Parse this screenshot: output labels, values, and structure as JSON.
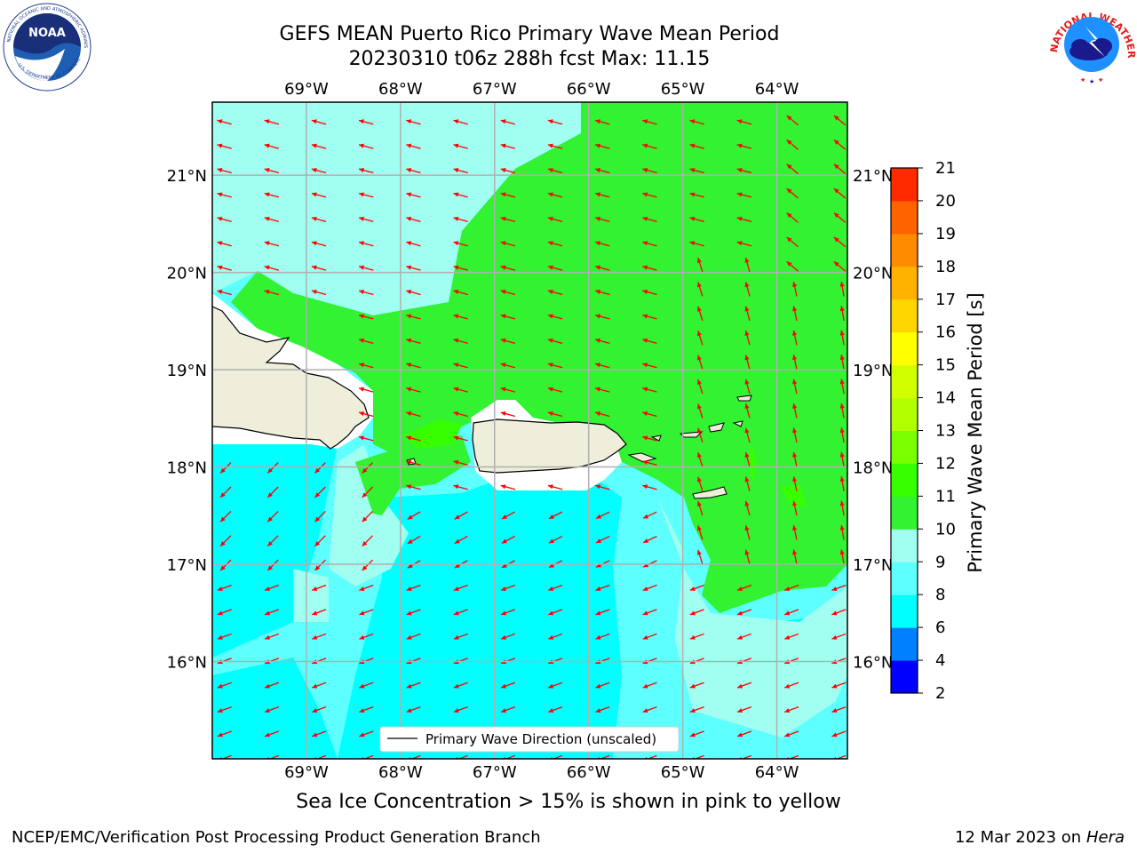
{
  "title": {
    "line1": "GEFS MEAN Puerto Rico Primary Wave Mean Period",
    "line2": "20230310 t06z 288h fcst   Max: 11.15"
  },
  "logos": {
    "left": "NOAA",
    "right_text": "NATIONAL WEATHER SERVICE"
  },
  "map": {
    "lon_labels": [
      "69°W",
      "68°W",
      "67°W",
      "66°W",
      "65°W",
      "64°W"
    ],
    "lat_labels": [
      "21°N",
      "20°N",
      "19°N",
      "18°N",
      "17°N",
      "16°N"
    ],
    "lon_values": [
      -69,
      -68,
      -67,
      -66,
      -65,
      -64
    ],
    "lat_values": [
      21,
      20,
      19,
      18,
      17,
      16
    ],
    "lon_range": [
      -70.0,
      -63.25
    ],
    "lat_range": [
      15.0,
      21.75
    ],
    "arrow_color": "#ff0000",
    "grid": true,
    "legend_label": "Primary Wave Direction (unscaled)"
  },
  "colorbar": {
    "label": "Primary Wave Mean Period [s]",
    "ticks": [
      "2",
      "4",
      "6",
      "8",
      "9",
      "10",
      "11",
      "12",
      "13",
      "14",
      "15",
      "16",
      "17",
      "18",
      "19",
      "20",
      "21"
    ],
    "colors": [
      "#0000ff",
      "#007fff",
      "#00ffff",
      "#5effff",
      "#a0fff0",
      "#32f232",
      "#37ff00",
      "#79ff00",
      "#b3ff00",
      "#d2ff00",
      "#ffff00",
      "#ffd700",
      "#ffb200",
      "#ff8c00",
      "#ff6300",
      "#ff2a00"
    ]
  },
  "chart_data": {
    "type": "heatmap",
    "variable": "Primary Wave Mean Period",
    "units": "s",
    "max": 11.15,
    "x_range": [
      -70.0,
      -63.25
    ],
    "y_range": [
      15.0,
      21.75
    ],
    "vector_field": "Primary Wave Direction (unscaled)"
  },
  "note": "Sea Ice Concentration > 15% is shown in pink to yellow",
  "footer": {
    "left": "NCEP/EMC/Verification Post Processing Product Generation Branch",
    "right_date": "12 Mar 2023 on",
    "right_host": "Hera"
  }
}
